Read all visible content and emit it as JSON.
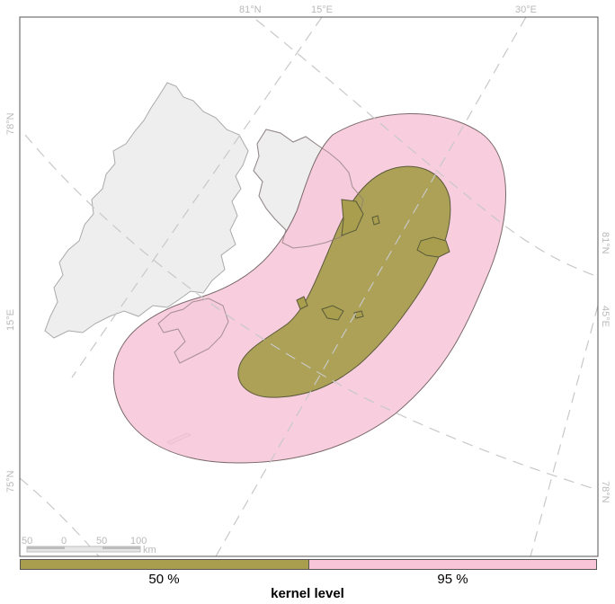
{
  "map": {
    "graticule_labels": {
      "top": [
        "81°N",
        "15°E",
        "30°E"
      ],
      "left": [
        "78°N",
        "15°E",
        "75°N"
      ],
      "right": [
        "81°N",
        "45°E",
        "78°N"
      ]
    },
    "scale_bar": {
      "ticks": [
        "50",
        "0",
        "50",
        "100"
      ],
      "unit": "km"
    }
  },
  "legend": {
    "title": "kernel level",
    "items": [
      {
        "label": "50 %",
        "color": "#a89e4e"
      },
      {
        "label": "95 %",
        "color": "#f7c4d8"
      }
    ]
  },
  "colors": {
    "land": "#eeeeee",
    "land_stroke": "#aaaaaa",
    "graticule": "#c8c8c8",
    "kernel_95": "#f7c4d8",
    "kernel_50": "#a89e4e",
    "frame": "#555555"
  }
}
